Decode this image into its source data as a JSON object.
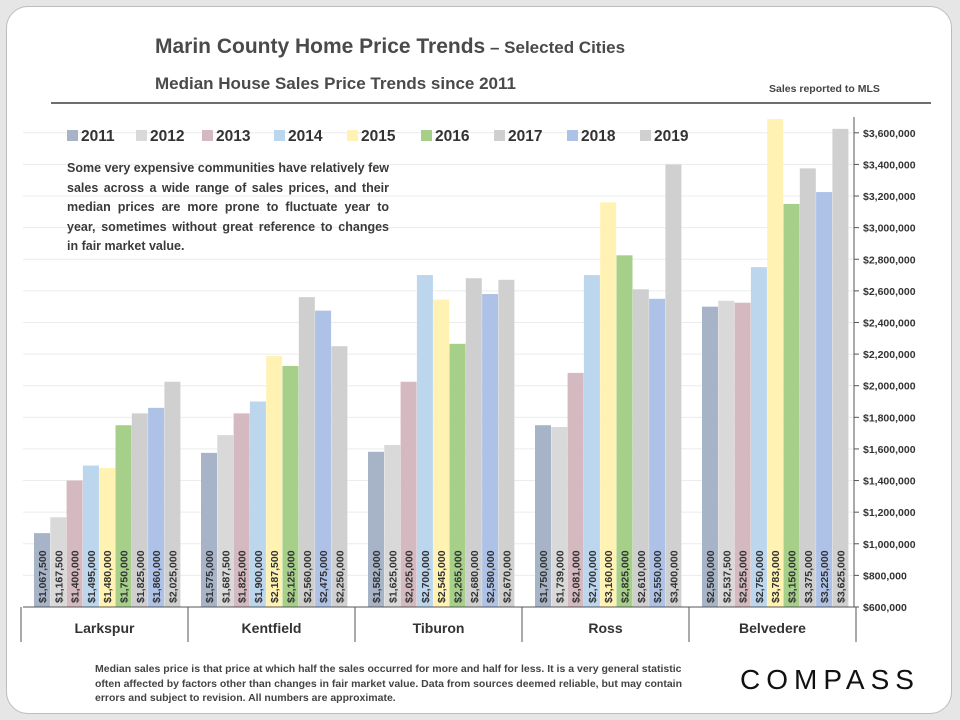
{
  "header": {
    "title": "Marin County Home Price Trends",
    "title_suffix": " – Selected Cities",
    "subtitle": "Median House Sales Price Trends since 2011",
    "source_note": "Sales reported to MLS"
  },
  "annotation": "Some very expensive communities have relatively few sales across a wide range of sales prices, and their median prices are more prone to fluctuate year to year, sometimes without great reference to changes in fair market value.",
  "footnote": "Median sales price is that price at which half the sales occurred for more and half for less. It is a very general statistic often affected by factors other than changes in fair market value. Data from sources deemed reliable, but may contain errors and subject to revision. All numbers are approximate.",
  "logo": "COMPASS",
  "chart_data": {
    "type": "bar",
    "title": "Median House Sales Price Trends since 2011",
    "categories": [
      "Larkspur",
      "Kentfield",
      "Tiburon",
      "Ross",
      "Belvedere"
    ],
    "series_names": [
      "2011",
      "2012",
      "2013",
      "2014",
      "2015",
      "2016",
      "2017",
      "2018",
      "2019"
    ],
    "colors": [
      "#a7b4c8",
      "#d9d9d9",
      "#d4b9c0",
      "#bcd6ee",
      "#fff2b3",
      "#a6d08a",
      "#cfcfcf",
      "#aec2e8",
      "#d0d0d0"
    ],
    "values": [
      [
        1067500,
        1167500,
        1400000,
        1495000,
        1480000,
        1750000,
        1825000,
        1860000,
        2025000
      ],
      [
        1575000,
        1687500,
        1825000,
        1900000,
        2187500,
        2125000,
        2560000,
        2475000,
        2250000
      ],
      [
        1582000,
        1625000,
        2025000,
        2700000,
        2545000,
        2265000,
        2680000,
        2580000,
        2670000
      ],
      [
        1750000,
        1739000,
        2081000,
        2700000,
        3160000,
        2825000,
        2610000,
        2550000,
        3400000
      ],
      [
        2500000,
        2537500,
        2525000,
        2750000,
        3783000,
        3150000,
        3375000,
        3225000,
        3625000
      ]
    ],
    "labels": [
      [
        "$1,067,500",
        "$1,167,500",
        "$1,400,000",
        "$1,495,000",
        "$1,480,000",
        "$1,750,000",
        "$1,825,000",
        "$1,860,000",
        "$2,025,000"
      ],
      [
        "$1,575,000",
        "$1,687,500",
        "$1,825,000",
        "$1,900,000",
        "$2,187,500",
        "$2,125,000",
        "$2,560,000",
        "$2,475,000",
        "$2,250,000"
      ],
      [
        "$1,582,000",
        "$1,625,000",
        "$2,025,000",
        "$2,700,000",
        "$2,545,000",
        "$2,265,000",
        "$2,680,000",
        "$2,580,000",
        "$2,670,000"
      ],
      [
        "$1,750,000",
        "$1,739,000",
        "$2,081,000",
        "$2,700,000",
        "$3,160,000",
        "$2,825,000",
        "$2,610,000",
        "$2,550,000",
        "$3,400,000"
      ],
      [
        "$2,500,000",
        "$2,537,500",
        "$2,525,000",
        "$2,750,000",
        "$3,783,000",
        "$3,150,000",
        "$3,375,000",
        "$3,225,000",
        "$3,625,000"
      ]
    ],
    "ylim": [
      600000,
      3700000
    ],
    "yticks": [
      600000,
      800000,
      1000000,
      1200000,
      1400000,
      1600000,
      1800000,
      2000000,
      2200000,
      2400000,
      2600000,
      2800000,
      3000000,
      3200000,
      3400000,
      3600000
    ],
    "ytick_labels": [
      "$600,000",
      "$800,000",
      "$1,000,000",
      "$1,200,000",
      "$1,400,000",
      "$1,600,000",
      "$1,800,000",
      "$2,000,000",
      "$2,200,000",
      "$2,400,000",
      "$2,600,000",
      "$2,800,000",
      "$3,000,000",
      "$3,200,000",
      "$3,400,000",
      "$3,600,000"
    ],
    "legend_position": "top-left",
    "grid": true,
    "yaxis_side": "right"
  }
}
